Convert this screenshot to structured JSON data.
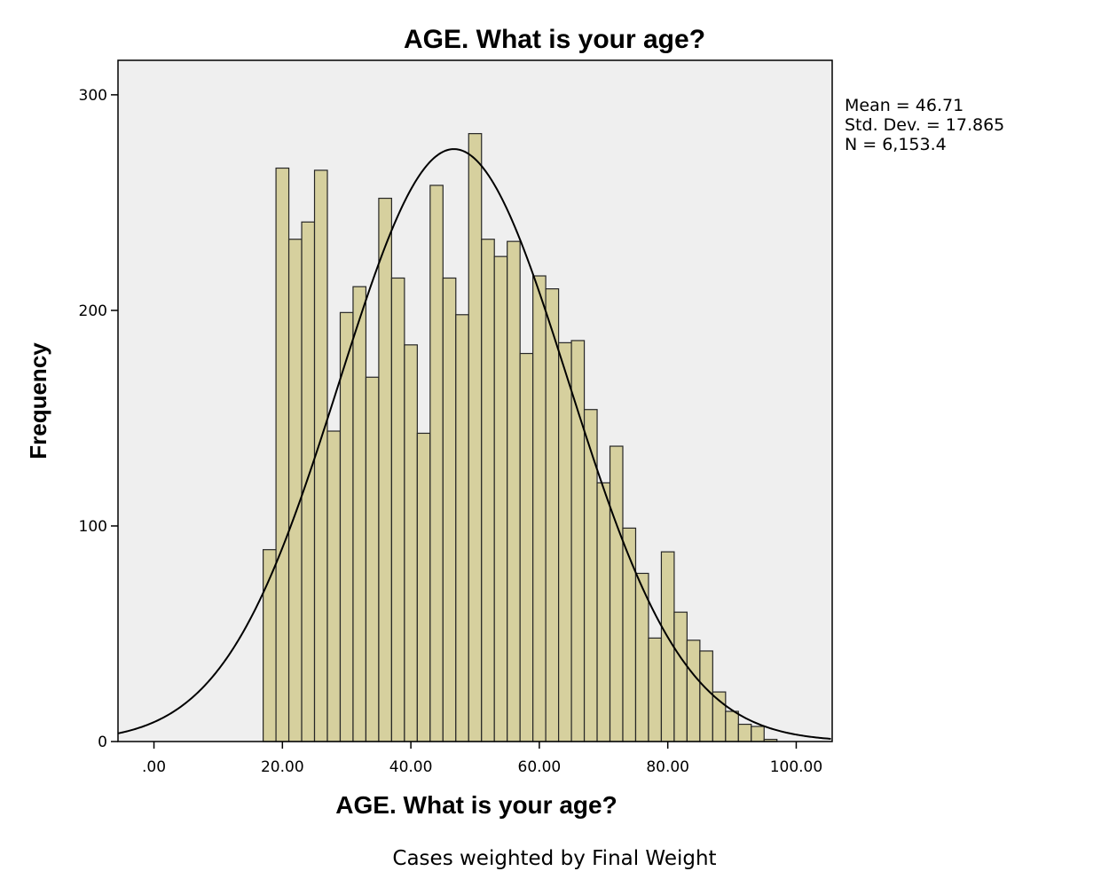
{
  "chart_data": {
    "type": "bar",
    "title": "AGE. What is your age?",
    "xlabel": "AGE. What is your age?",
    "ylabel": "Frequency",
    "footnote": "Cases weighted by Final Weight",
    "stats": {
      "mean": "Mean = 46.71",
      "std": "Std. Dev. = 17.865",
      "n": "N = 6,153.4"
    },
    "xlim": [
      -5.6,
      105.6
    ],
    "ylim": [
      0,
      316
    ],
    "x_ticks": [
      {
        "value": 0,
        "label": ".00"
      },
      {
        "value": 20,
        "label": "20.00"
      },
      {
        "value": 40,
        "label": "40.00"
      },
      {
        "value": 60,
        "label": "60.00"
      },
      {
        "value": 80,
        "label": "80.00"
      },
      {
        "value": 100,
        "label": "100.00"
      }
    ],
    "y_ticks": [
      {
        "value": 0,
        "label": "0"
      },
      {
        "value": 100,
        "label": "100"
      },
      {
        "value": 200,
        "label": "200"
      },
      {
        "value": 300,
        "label": "300"
      }
    ],
    "bin_width": 2,
    "bins": [
      {
        "x": 18,
        "count": 89
      },
      {
        "x": 20,
        "count": 266
      },
      {
        "x": 22,
        "count": 233
      },
      {
        "x": 24,
        "count": 241
      },
      {
        "x": 26,
        "count": 265
      },
      {
        "x": 28,
        "count": 144
      },
      {
        "x": 30,
        "count": 199
      },
      {
        "x": 32,
        "count": 211
      },
      {
        "x": 34,
        "count": 169
      },
      {
        "x": 36,
        "count": 252
      },
      {
        "x": 38,
        "count": 215
      },
      {
        "x": 40,
        "count": 184
      },
      {
        "x": 42,
        "count": 143
      },
      {
        "x": 44,
        "count": 258
      },
      {
        "x": 46,
        "count": 215
      },
      {
        "x": 48,
        "count": 198
      },
      {
        "x": 50,
        "count": 282
      },
      {
        "x": 52,
        "count": 233
      },
      {
        "x": 54,
        "count": 225
      },
      {
        "x": 56,
        "count": 232
      },
      {
        "x": 58,
        "count": 180
      },
      {
        "x": 60,
        "count": 216
      },
      {
        "x": 62,
        "count": 210
      },
      {
        "x": 64,
        "count": 185
      },
      {
        "x": 66,
        "count": 186
      },
      {
        "x": 68,
        "count": 154
      },
      {
        "x": 70,
        "count": 120
      },
      {
        "x": 72,
        "count": 137
      },
      {
        "x": 74,
        "count": 99
      },
      {
        "x": 76,
        "count": 78
      },
      {
        "x": 78,
        "count": 48
      },
      {
        "x": 80,
        "count": 88
      },
      {
        "x": 82,
        "count": 60
      },
      {
        "x": 84,
        "count": 47
      },
      {
        "x": 86,
        "count": 42
      },
      {
        "x": 88,
        "count": 23
      },
      {
        "x": 90,
        "count": 14
      },
      {
        "x": 92,
        "count": 8
      },
      {
        "x": 94,
        "count": 7
      },
      {
        "x": 96,
        "count": 1
      }
    ],
    "normal_curve": {
      "mean": 46.71,
      "std": 17.865,
      "n": 6153.4
    },
    "colors": {
      "plot_background": "#efefef",
      "bar_fill": "#d6d09e",
      "bar_stroke": "#262626",
      "curve": "#000000",
      "axis": "#000000"
    },
    "grid": false
  }
}
